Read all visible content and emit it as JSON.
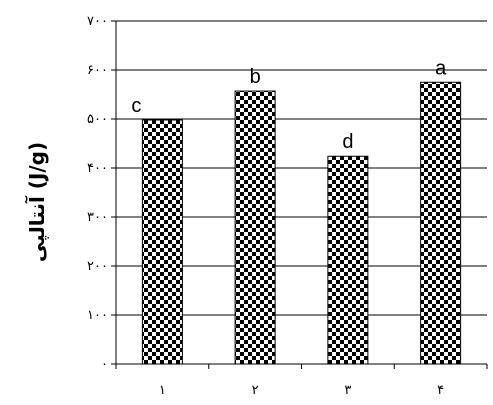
{
  "chart_data": {
    "type": "bar",
    "title": "",
    "xlabel": "",
    "ylabel": "آنتالپی (J/g)",
    "categories": [
      "۱",
      "۲",
      "۳",
      "۴"
    ],
    "values": [
      498,
      557,
      424,
      575
    ],
    "bar_labels": [
      "c",
      "b",
      "d",
      "a"
    ],
    "ylim": [
      0,
      700
    ],
    "y_ticks": [
      0,
      100,
      200,
      300,
      400,
      500,
      600,
      700
    ],
    "y_tick_labels": [
      "۰",
      "۱۰۰",
      "۲۰۰",
      "۳۰۰",
      "۴۰۰",
      "۵۰۰",
      "۶۰۰",
      "۷۰۰"
    ],
    "grid": true,
    "legend": "none",
    "bar_fill": "checkerboard",
    "colors": {
      "bar_dark": "#000000",
      "bar_light": "#ffffff",
      "grid": "#000000"
    }
  }
}
